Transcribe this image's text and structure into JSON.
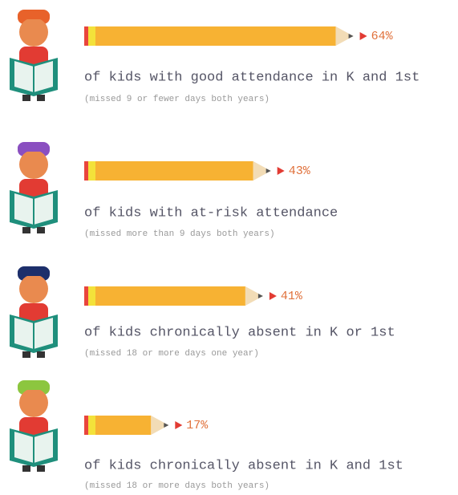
{
  "chart_data": {
    "type": "bar",
    "categories": [
      "of kids with good attendance in K and 1st",
      "of kids with at-risk attendance",
      "of kids chronically absent in K or 1st",
      "of kids chronically absent in K and 1st"
    ],
    "notes": [
      "(missed 9 or fewer days both years)",
      "(missed more than 9 days both years)",
      "(missed 18 or more days one year)",
      "(missed 18 or more days both years)"
    ],
    "values": [
      64,
      43,
      41,
      17
    ],
    "value_labels": [
      "64%",
      "43%",
      "41%",
      "17%"
    ],
    "color": "#f7b233"
  }
}
